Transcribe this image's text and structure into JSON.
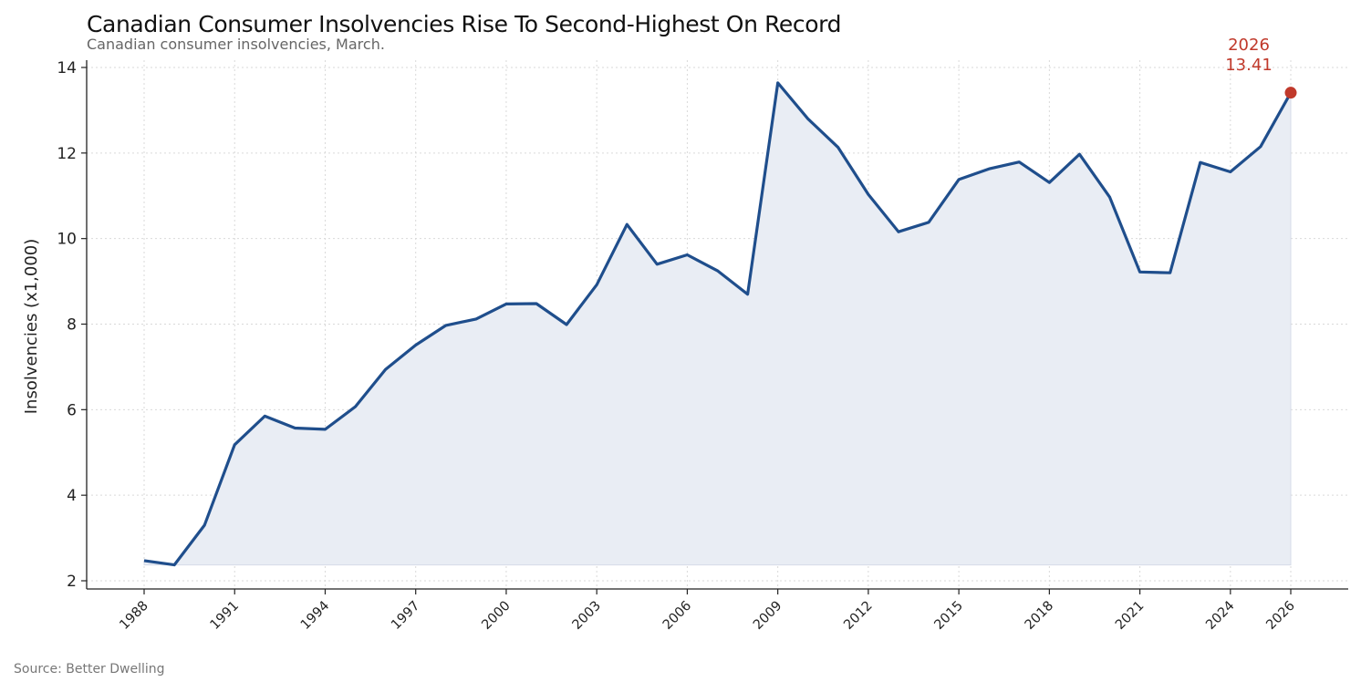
{
  "title": "Canadian Consumer Insolvencies Rise To Second-Highest On Record",
  "subtitle": "Canadian consumer insolvencies, March.",
  "source": "Source: Better Dwelling",
  "colors": {
    "line": "#1f4e8c",
    "fill": "#e9edf4",
    "highlight": "#c0392b",
    "grid": "#d9d9d9"
  },
  "chart_data": {
    "type": "area",
    "ylabel": "Insolvencies (x1,000)",
    "xlabel": "",
    "ylim": [
      2,
      14
    ],
    "yticks": [
      2,
      4,
      6,
      8,
      10,
      12,
      14
    ],
    "xticks": [
      1988,
      1991,
      1994,
      1997,
      2000,
      2003,
      2006,
      2009,
      2012,
      2015,
      2018,
      2021,
      2024,
      2026
    ],
    "xlim": [
      1988,
      2026
    ],
    "grid": true,
    "x": [
      1988,
      1989,
      1990,
      1991,
      1992,
      1993,
      1994,
      1995,
      1996,
      1997,
      1998,
      1999,
      2000,
      2001,
      2002,
      2003,
      2004,
      2005,
      2006,
      2007,
      2008,
      2009,
      2010,
      2011,
      2012,
      2013,
      2014,
      2015,
      2016,
      2017,
      2018,
      2019,
      2020,
      2021,
      2022,
      2023,
      2024,
      2025,
      2026
    ],
    "values": [
      2.47,
      2.37,
      3.3,
      5.18,
      5.85,
      5.57,
      5.54,
      6.07,
      6.94,
      7.51,
      7.97,
      8.12,
      8.47,
      8.48,
      7.99,
      8.92,
      10.33,
      9.4,
      9.62,
      9.25,
      8.7,
      13.64,
      12.8,
      12.13,
      11.03,
      10.16,
      10.38,
      11.38,
      11.63,
      11.79,
      11.31,
      11.97,
      10.97,
      9.22,
      9.2,
      11.78,
      11.56,
      12.15,
      13.41
    ],
    "annotation": {
      "year_label": "2026",
      "value_label": "13.41",
      "x": 2026,
      "y": 13.41
    }
  }
}
